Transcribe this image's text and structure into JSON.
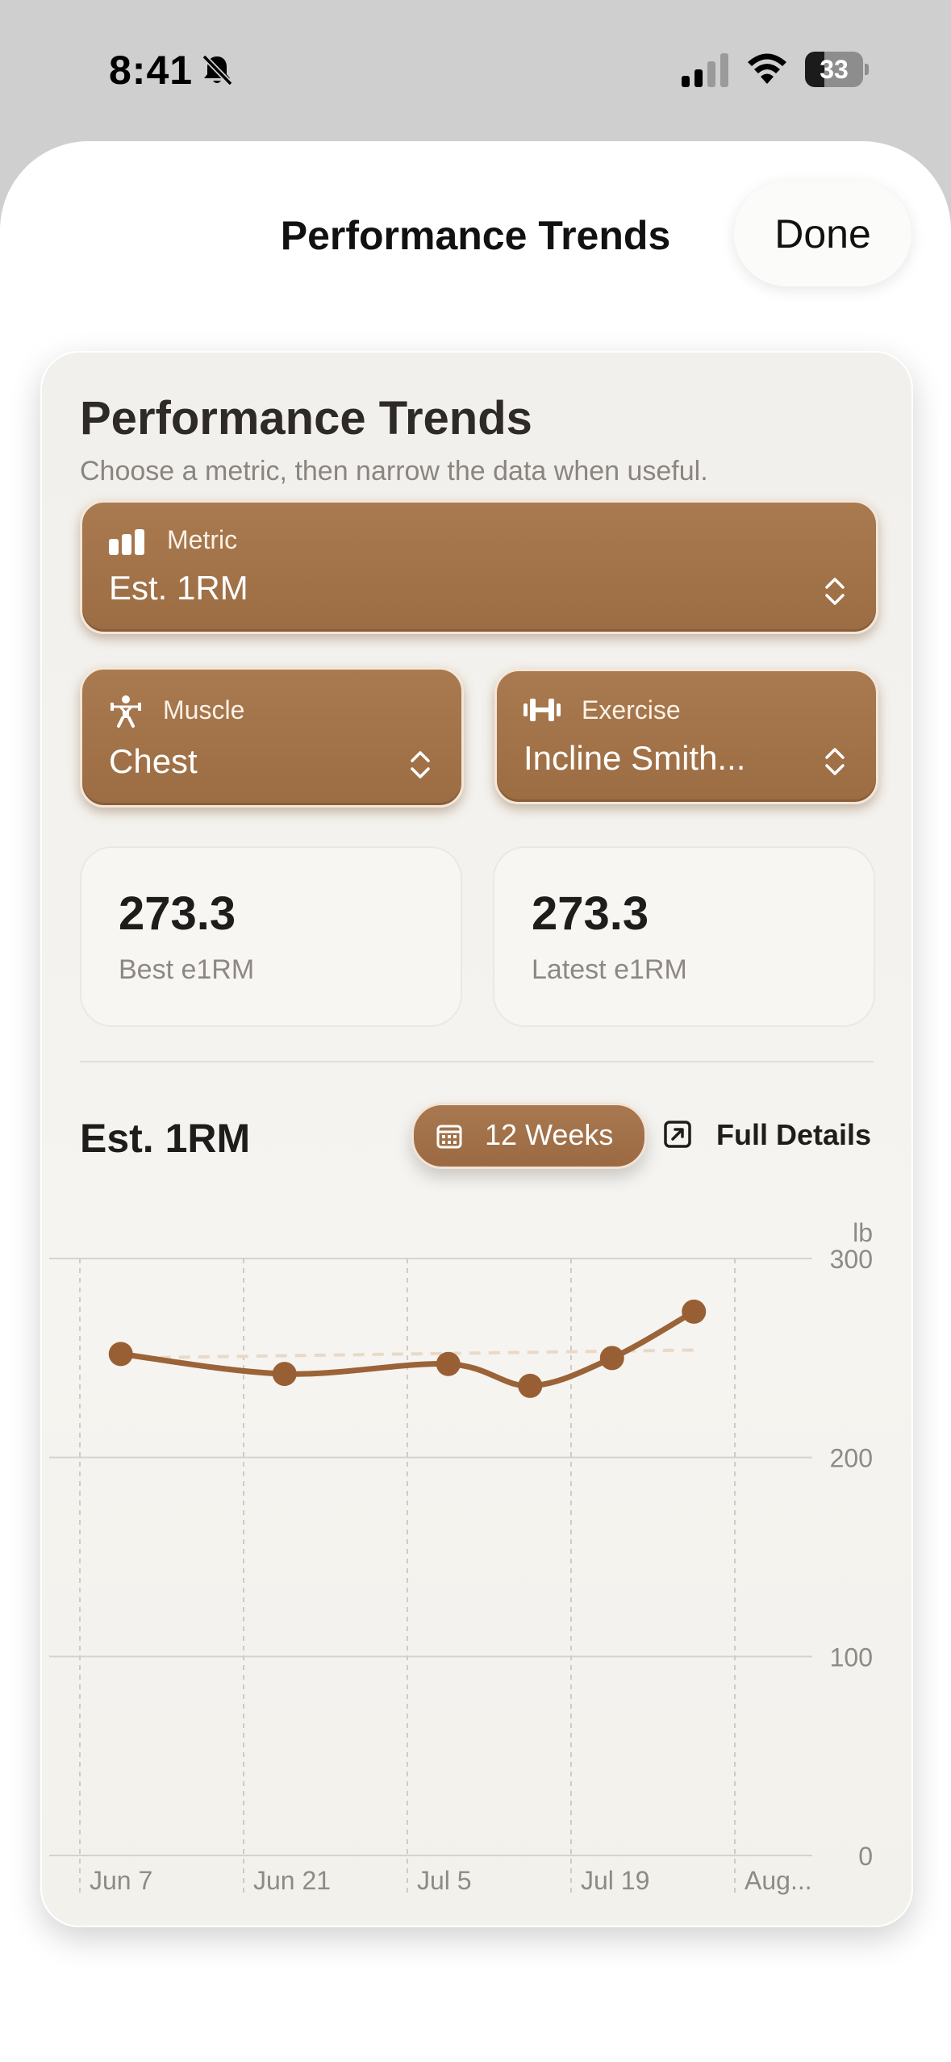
{
  "status_bar": {
    "time": "8:41",
    "battery_level": "33",
    "battery_percent": 33,
    "icons": [
      "bell-slash-icon",
      "signal-icon",
      "wifi-icon",
      "battery-icon"
    ]
  },
  "sheet": {
    "title": "Performance Trends",
    "done_label": "Done"
  },
  "card": {
    "title": "Performance Trends",
    "subtitle": "Choose a metric, then narrow the data when useful.",
    "metric": {
      "label": "Metric",
      "value": "Est. 1RM",
      "icon": "chart-bars-icon"
    },
    "muscle": {
      "label": "Muscle",
      "value": "Chest",
      "icon": "figure-lifting-icon"
    },
    "exercise": {
      "label": "Exercise",
      "value": "Incline Smith...",
      "icon": "dumbbell-icon"
    },
    "stats": [
      {
        "value": "273.3",
        "caption": "Best e1RM"
      },
      {
        "value": "273.3",
        "caption": "Latest e1RM"
      }
    ],
    "chart_header": {
      "title": "Est. 1RM",
      "range_label": "12 Weeks",
      "details_label": "Full Details"
    }
  },
  "colors": {
    "accent": "#9c6c43",
    "line": "#9a6338",
    "card_bg": "#f4f2ee"
  },
  "chart_data": {
    "type": "line",
    "title": "",
    "xlabel": "",
    "ylabel": "lb",
    "unit": "lb",
    "ylim": [
      0,
      300
    ],
    "yticks": [
      0,
      100,
      200,
      300
    ],
    "xlim_days": [
      0,
      63
    ],
    "x_tick_labels": [
      {
        "label": "Jun 7",
        "day": 0
      },
      {
        "label": "Jun 21",
        "day": 14
      },
      {
        "label": "Jul 5",
        "day": 28
      },
      {
        "label": "Jul 19",
        "day": 42
      },
      {
        "label": "Aug...",
        "day": 56
      }
    ],
    "grid": true,
    "series": [
      {
        "values": [
          {
            "x": "Jun 10",
            "day": 3.5,
            "y": 252
          },
          {
            "x": "Jun 24",
            "day": 17.5,
            "y": 242
          },
          {
            "x": "Jul 8",
            "day": 31.5,
            "y": 247
          },
          {
            "x": "Jul 15",
            "day": 38.5,
            "y": 236
          },
          {
            "x": "Jul 22",
            "day": 45.5,
            "y": 250
          },
          {
            "x": "Jul 29",
            "day": 52.5,
            "y": 273.3
          }
        ]
      }
    ],
    "trend_line": {
      "style": "dashed",
      "from": {
        "day": 3.5,
        "y": 250
      },
      "to": {
        "day": 52.5,
        "y": 254
      }
    }
  }
}
